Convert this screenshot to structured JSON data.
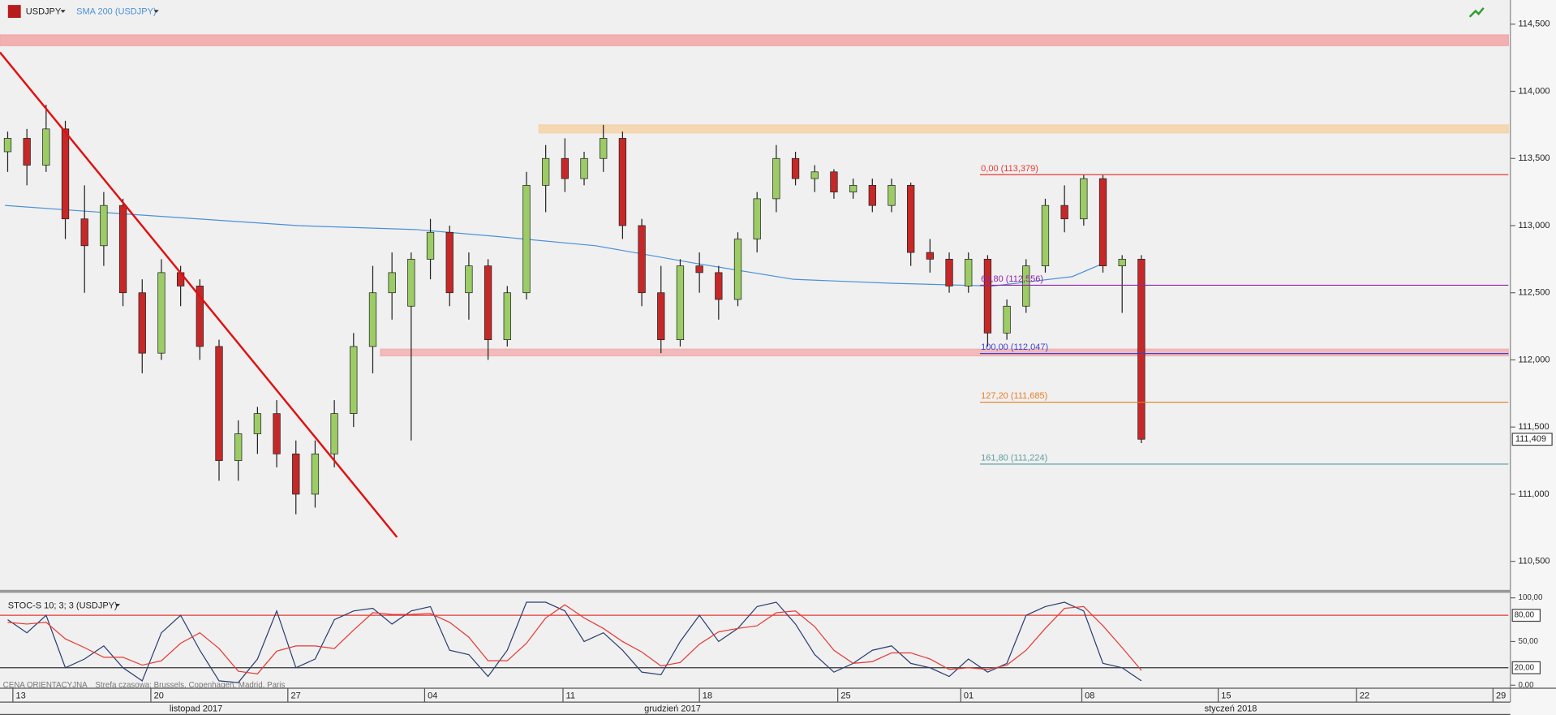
{
  "chart_data": [
    {
      "type": "candlestick",
      "title": "USDJPY",
      "xlim": [
        -0.4,
        78.1
      ],
      "ylim": [
        110.28,
        114.68
      ],
      "yticks": [
        {
          "value": 114.5,
          "label": "114,500"
        },
        {
          "value": 114.0,
          "label": "114,000"
        },
        {
          "value": 113.5,
          "label": "113,500"
        },
        {
          "value": 113.0,
          "label": "113,000"
        },
        {
          "value": 112.5,
          "label": "112,500"
        },
        {
          "value": 112.0,
          "label": "112,000"
        },
        {
          "value": 111.5,
          "label": "111,500"
        },
        {
          "value": 111.0,
          "label": "111,000"
        },
        {
          "value": 110.5,
          "label": "110,500"
        }
      ],
      "up_color": "#9ccc65",
      "down_color": "#c62828",
      "open": [
        113.55,
        113.65,
        113.45,
        113.72,
        113.05,
        112.85,
        113.15,
        112.5,
        112.05,
        112.65,
        112.55,
        112.1,
        111.25,
        111.45,
        111.6,
        111.3,
        111.0,
        111.3,
        111.6,
        112.1,
        112.5,
        112.4,
        112.75,
        112.95,
        112.5,
        112.7,
        112.15,
        112.5,
        113.3,
        113.5,
        113.35,
        113.5,
        113.65,
        113.0,
        112.5,
        112.15,
        112.7,
        112.65,
        112.45,
        112.9,
        113.2,
        113.5,
        113.35,
        113.4,
        113.25,
        113.3,
        113.15,
        113.3,
        112.8,
        112.75,
        112.55,
        112.75,
        112.2,
        112.4,
        112.7,
        113.15,
        113.05,
        113.35,
        112.7,
        112.75
      ],
      "high": [
        113.7,
        113.72,
        113.9,
        113.78,
        113.3,
        113.25,
        113.2,
        112.6,
        112.75,
        112.7,
        112.6,
        112.15,
        111.55,
        111.65,
        111.7,
        111.4,
        111.4,
        111.7,
        112.2,
        112.7,
        112.8,
        112.8,
        113.05,
        113.0,
        112.8,
        112.75,
        112.55,
        113.4,
        113.6,
        113.65,
        113.55,
        113.75,
        113.7,
        113.05,
        112.7,
        112.75,
        112.8,
        112.7,
        112.95,
        113.25,
        113.6,
        113.55,
        113.45,
        113.42,
        113.35,
        113.35,
        113.35,
        113.32,
        112.9,
        112.8,
        112.8,
        112.78,
        112.45,
        112.75,
        113.2,
        113.3,
        113.38,
        113.38,
        112.78,
        112.78
      ],
      "low": [
        113.4,
        113.3,
        113.4,
        112.9,
        112.5,
        112.7,
        112.4,
        111.9,
        112.0,
        112.4,
        112.0,
        111.1,
        111.1,
        111.3,
        111.2,
        110.85,
        110.9,
        111.2,
        111.5,
        111.9,
        112.3,
        111.4,
        112.6,
        112.4,
        112.3,
        112.0,
        112.1,
        112.45,
        113.1,
        113.25,
        113.3,
        113.4,
        112.9,
        112.4,
        112.05,
        112.1,
        112.5,
        112.3,
        112.4,
        112.8,
        113.1,
        113.3,
        113.25,
        113.2,
        113.2,
        113.1,
        113.1,
        112.7,
        112.65,
        112.5,
        112.5,
        112.1,
        112.15,
        112.35,
        112.65,
        112.95,
        113.0,
        112.65,
        112.35,
        111.38
      ],
      "close": [
        113.65,
        113.45,
        113.72,
        113.05,
        112.85,
        113.15,
        112.5,
        112.05,
        112.65,
        112.55,
        112.1,
        111.25,
        111.45,
        111.6,
        111.3,
        111.0,
        111.3,
        111.6,
        112.1,
        112.5,
        112.65,
        112.75,
        112.95,
        112.5,
        112.7,
        112.15,
        112.5,
        113.3,
        113.5,
        113.35,
        113.5,
        113.65,
        113.0,
        112.5,
        112.15,
        112.7,
        112.65,
        112.45,
        112.9,
        113.2,
        113.5,
        113.35,
        113.4,
        113.25,
        113.3,
        113.15,
        113.3,
        112.8,
        112.75,
        112.55,
        112.75,
        112.2,
        112.4,
        112.7,
        113.15,
        113.05,
        113.35,
        112.7,
        112.75,
        111.409
      ],
      "series": [
        {
          "name": "SMA 200 (USDJPY)",
          "color": "#4a90d9",
          "x": [
            -0.14,
            4.77,
            9.93,
            15.1,
            21.3,
            25.4,
            30.6,
            35.76,
            40.9,
            46.1,
            51.25,
            55.4,
            57.2
          ],
          "values": [
            113.15,
            113.1,
            113.05,
            113.0,
            112.97,
            112.92,
            112.85,
            112.72,
            112.6,
            112.57,
            112.55,
            112.62,
            112.73
          ]
        }
      ],
      "zones": [
        {
          "y0": 114.34,
          "y1": 114.42,
          "x0": -0.4,
          "color": "#f2a6a6"
        },
        {
          "y0": 113.69,
          "y1": 113.75,
          "x0": 27.65,
          "color": "#f5d3a8"
        },
        {
          "y0": 112.03,
          "y1": 112.08,
          "x0": 19.4,
          "color": "#f2b0b0"
        }
      ],
      "trendline": {
        "x": [
          -0.4,
          20.26
        ],
        "y": [
          114.29,
          110.68
        ],
        "color": "#e01010"
      },
      "fibonacci": {
        "x0": 50.6,
        "levels": [
          {
            "label": "0,00 (113,379)",
            "value": 113.379,
            "color": "#e53935"
          },
          {
            "label": "61,80 (112,556)",
            "value": 112.556,
            "color": "#8e24aa"
          },
          {
            "label": "100,00 (112,047)",
            "value": 112.047,
            "color": "#3f3fd0"
          },
          {
            "label": "127,20 (111,685)",
            "value": 111.685,
            "color": "#e67e22"
          },
          {
            "label": "161,80 (111,224)",
            "value": 111.224,
            "color": "#5f9ea0"
          }
        ]
      },
      "last_price": {
        "value": 111.409,
        "label": "111,409"
      }
    },
    {
      "type": "line",
      "title": "STOC-S 10; 3; 3 (USDJPY)",
      "xlim": [
        -0.4,
        78.1
      ],
      "ylim": [
        -3.4,
        105.7
      ],
      "yticks": [
        {
          "value": 100,
          "label": "100,00"
        },
        {
          "value": 50,
          "label": "50,00"
        },
        {
          "value": 0,
          "label": "0,00"
        }
      ],
      "levels": [
        {
          "value": 80,
          "label": "80,00",
          "color": "#e53935"
        },
        {
          "value": 20,
          "label": "20,00",
          "color": "#333333"
        }
      ],
      "series": [
        {
          "color": "#2c3e70",
          "values": [
            75,
            60,
            80,
            20,
            30,
            45,
            20,
            5,
            60,
            80,
            40,
            5,
            3,
            30,
            85,
            20,
            30,
            75,
            85,
            88,
            70,
            85,
            90,
            40,
            35,
            10,
            40,
            95,
            95,
            85,
            50,
            60,
            40,
            15,
            12,
            50,
            80,
            50,
            65,
            90,
            95,
            70,
            35,
            15,
            25,
            40,
            45,
            25,
            20,
            10,
            30,
            15,
            25,
            80,
            90,
            95,
            85,
            25,
            20,
            5
          ]
        },
        {
          "color": "#e53935",
          "values": [
            72,
            70,
            72,
            53,
            43,
            32,
            32,
            23,
            28,
            48,
            60,
            42,
            16,
            13,
            39,
            45,
            45,
            42,
            63,
            83,
            81,
            81,
            82,
            72,
            55,
            28,
            28,
            48,
            77,
            92,
            77,
            65,
            50,
            38,
            22,
            26,
            47,
            61,
            65,
            68,
            83,
            85,
            67,
            40,
            25,
            27,
            37,
            37,
            30,
            18,
            20,
            18,
            23,
            40,
            65,
            88,
            90,
            68,
            43,
            17
          ]
        }
      ],
      "xticks": [
        {
          "value": 0.27,
          "label": "13"
        },
        {
          "value": 7.45,
          "label": "20"
        },
        {
          "value": 14.58,
          "label": "27"
        },
        {
          "value": 21.7,
          "label": "04"
        },
        {
          "value": 28.9,
          "label": "11"
        },
        {
          "value": 36.0,
          "label": "18"
        },
        {
          "value": 43.2,
          "label": "25"
        },
        {
          "value": 49.6,
          "label": "01"
        },
        {
          "value": 55.9,
          "label": "08"
        },
        {
          "value": 63.0,
          "label": "15"
        },
        {
          "value": 70.2,
          "label": "22"
        },
        {
          "value": 77.3,
          "label": "29"
        }
      ],
      "month_labels": [
        {
          "value": 9.8,
          "label": "listopad 2017"
        },
        {
          "value": 34.6,
          "label": "grudzień 2017"
        },
        {
          "value": 63.65,
          "label": "styczeń 2018"
        }
      ],
      "footnote": [
        "CENA ORIENTACYJNA",
        "Strefa czasowa: Brussels, Copenhagen, Madrid, Paris"
      ]
    }
  ]
}
